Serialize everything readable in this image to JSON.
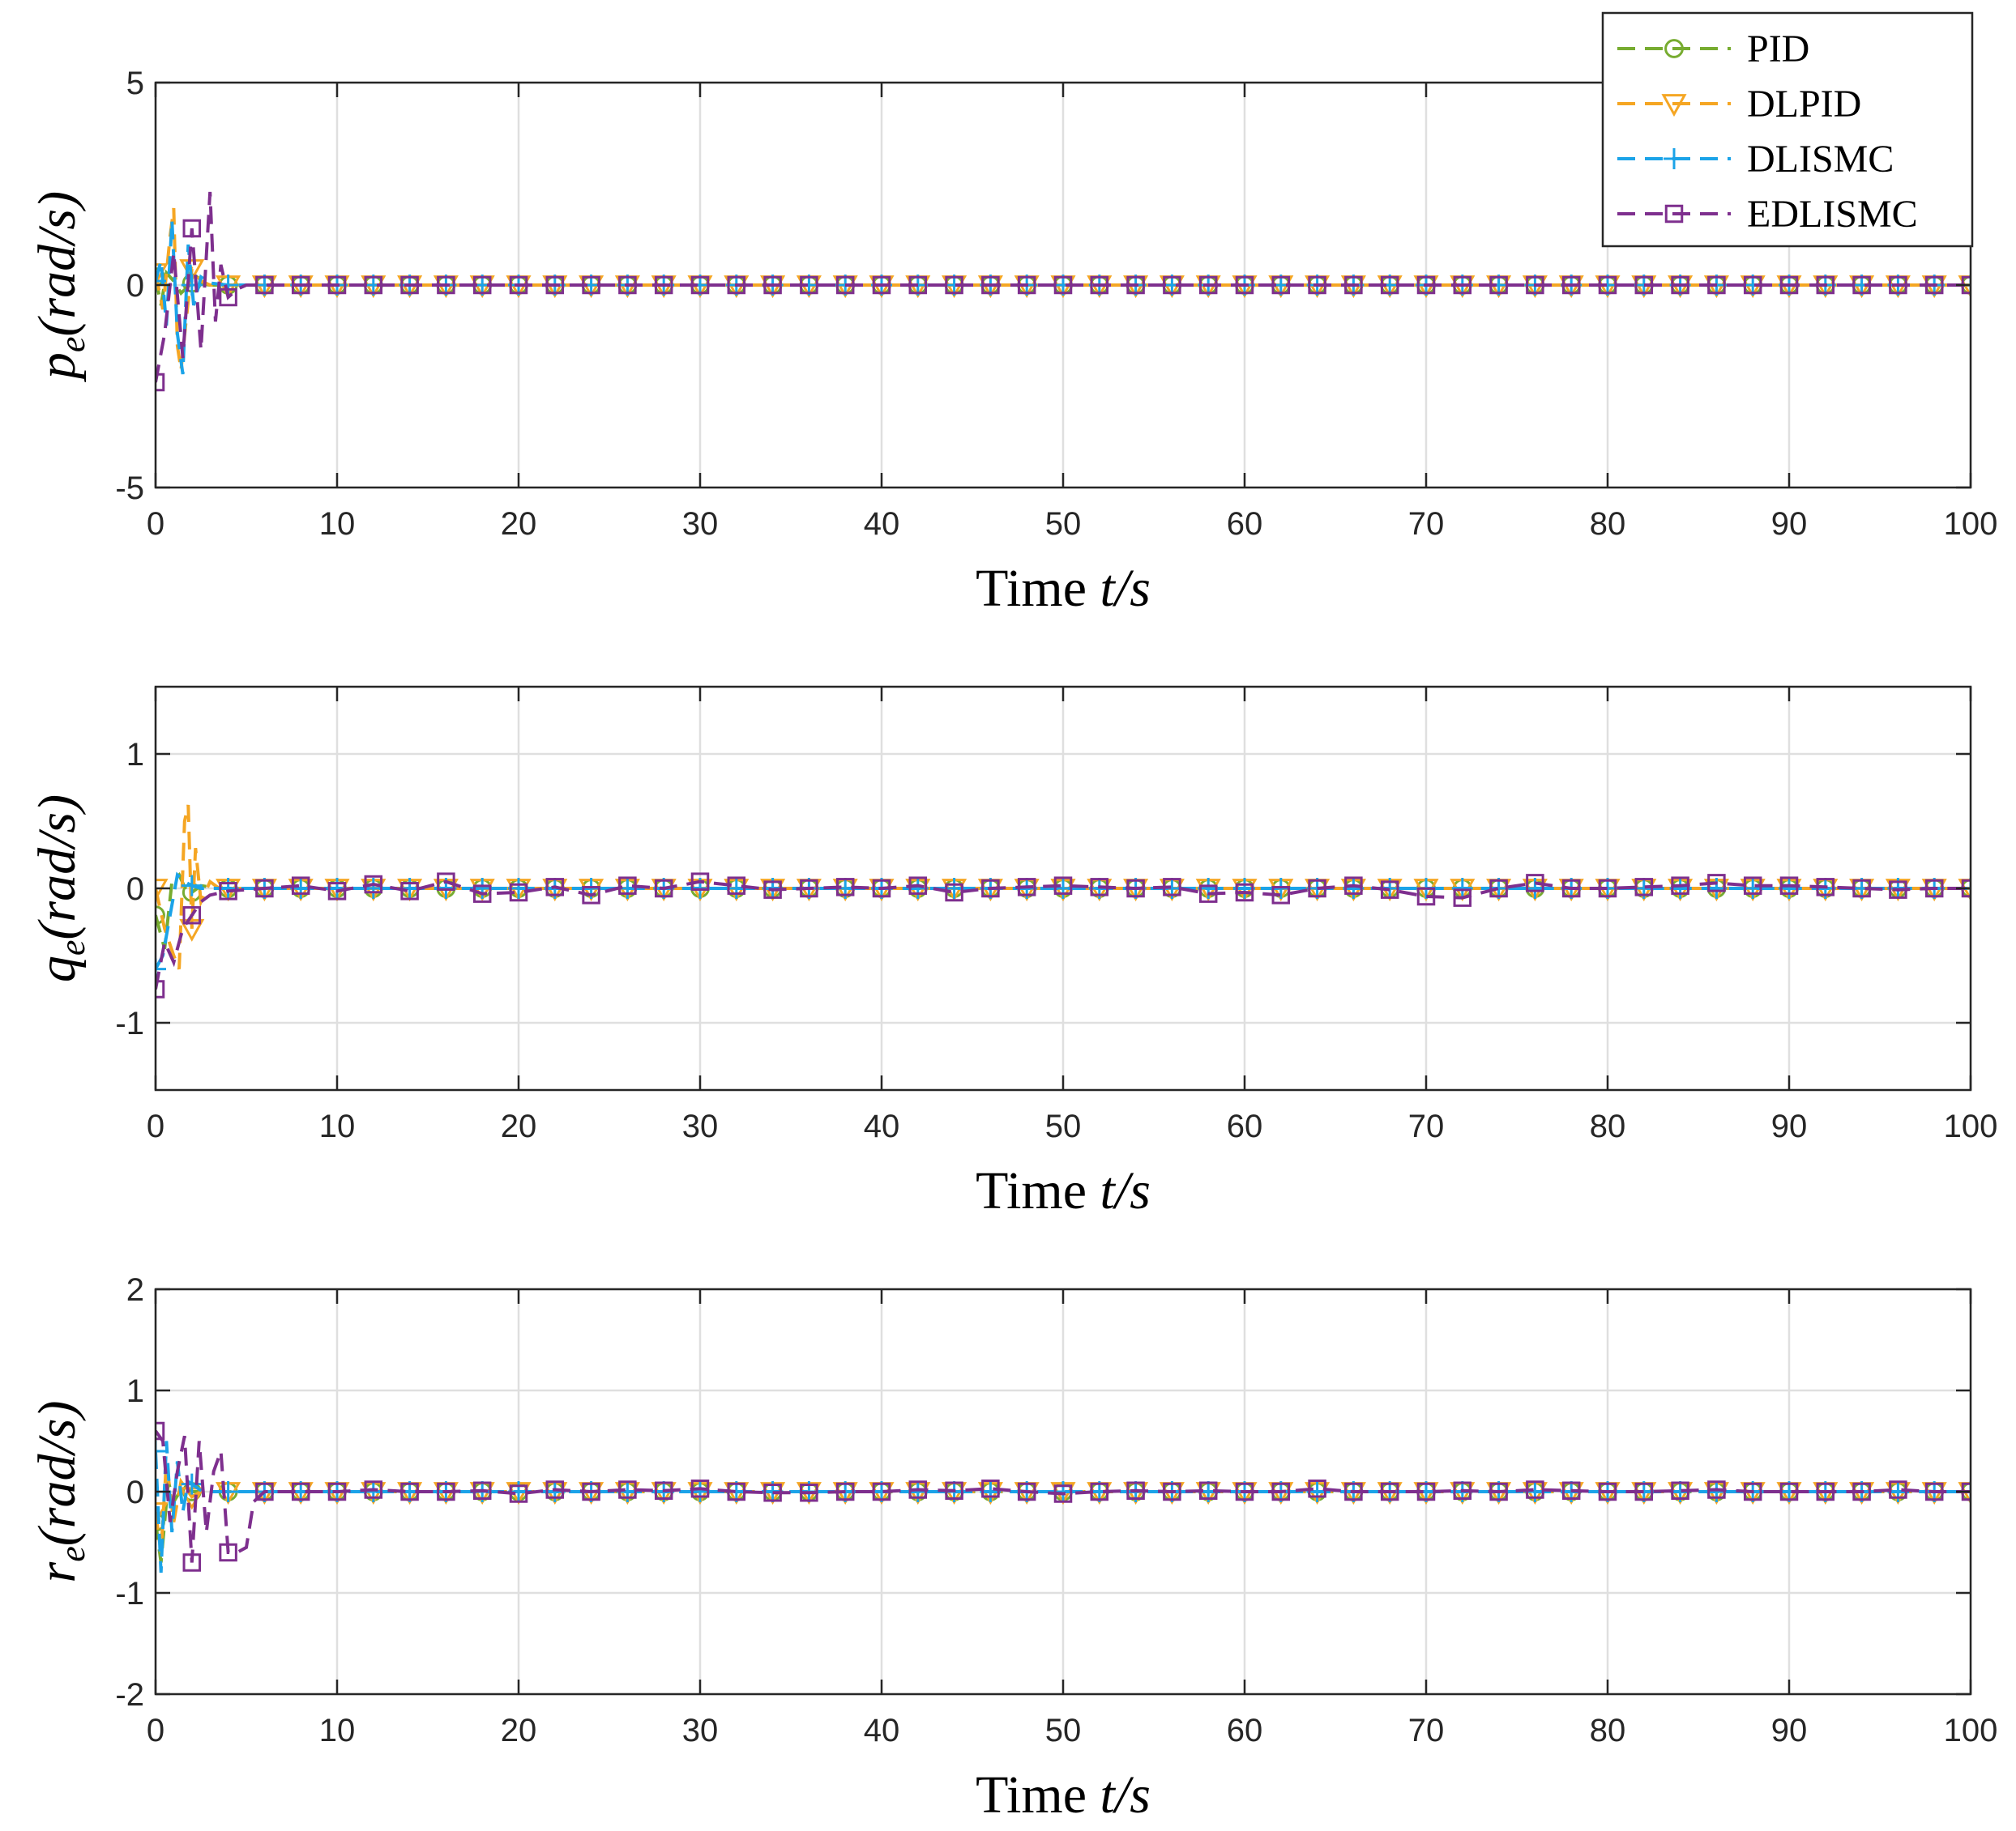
{
  "chart_data": [
    {
      "type": "line",
      "title": "",
      "xlabel": "Time t/s",
      "ylabel": "p_e(rad/s)",
      "xlim": [
        0,
        100
      ],
      "ylim": [
        -5,
        5
      ],
      "xticks": [
        0,
        10,
        20,
        30,
        40,
        50,
        60,
        70,
        80,
        90,
        100
      ],
      "yticks": [
        -5,
        0,
        5
      ],
      "grid": true,
      "series": [
        {
          "name": "PID",
          "x": [
            0,
            0.3,
            0.6,
            1.0,
            1.4,
            2.0,
            3.0,
            100
          ],
          "y": [
            0.2,
            -0.5,
            0.3,
            0.1,
            -0.2,
            0.05,
            0.0,
            0.0
          ]
        },
        {
          "name": "DLPID",
          "x": [
            0,
            0.4,
            0.8,
            1.0,
            1.2,
            1.4,
            1.7,
            2.0,
            2.5,
            3.0,
            100
          ],
          "y": [
            0.3,
            -0.6,
            1.2,
            1.9,
            -1.5,
            -2.1,
            -0.8,
            0.4,
            0.1,
            0.0,
            0.0
          ]
        },
        {
          "name": "DLISMC",
          "x": [
            0,
            0.3,
            0.6,
            0.9,
            1.2,
            1.5,
            1.8,
            2.1,
            2.5,
            3.0,
            4.0,
            100
          ],
          "y": [
            0.1,
            0.6,
            -1.0,
            1.6,
            -1.2,
            -2.2,
            1.0,
            -0.5,
            0.2,
            0.05,
            0.0,
            0.0
          ]
        },
        {
          "name": "EDLISMC",
          "x": [
            0,
            0.5,
            1.0,
            1.5,
            2.0,
            2.5,
            3.0,
            3.3,
            3.6,
            4.0,
            4.5,
            5.0,
            100
          ],
          "y": [
            -2.4,
            -1.2,
            0.8,
            -1.8,
            1.4,
            -1.6,
            2.3,
            -0.9,
            0.5,
            -0.3,
            -0.1,
            0.0,
            0.0
          ]
        }
      ]
    },
    {
      "type": "line",
      "title": "",
      "xlabel": "Time t/s",
      "ylabel": "q_e(rad/s)",
      "xlim": [
        0,
        100
      ],
      "ylim": [
        -1.5,
        1.5
      ],
      "xticks": [
        0,
        10,
        20,
        30,
        40,
        50,
        60,
        70,
        80,
        90,
        100
      ],
      "yticks": [
        -1,
        0,
        1
      ],
      "grid": true,
      "series": [
        {
          "name": "PID",
          "x": [
            0,
            0.5,
            0.9,
            1.3,
            1.8,
            2.5,
            3.5,
            100
          ],
          "y": [
            -0.2,
            -0.45,
            0.05,
            0.1,
            -0.05,
            0.02,
            0.0,
            0.0
          ]
        },
        {
          "name": "DLPID",
          "x": [
            0,
            0.5,
            1.0,
            1.3,
            1.6,
            1.8,
            2.0,
            2.2,
            2.5,
            3.0,
            3.5,
            100
          ],
          "y": [
            0.0,
            -0.3,
            -0.5,
            -0.6,
            0.5,
            0.62,
            -0.3,
            0.3,
            -0.1,
            0.05,
            0.0,
            0.0
          ]
        },
        {
          "name": "DLISMC",
          "x": [
            0,
            0.4,
            0.8,
            1.2,
            1.6,
            2.0,
            2.5,
            3.0,
            100
          ],
          "y": [
            -0.6,
            -0.5,
            -0.2,
            0.1,
            0.05,
            0.02,
            0.0,
            0.0,
            0.0
          ]
        },
        {
          "name": "EDLISMC",
          "x": [
            0,
            0.5,
            1.0,
            1.5,
            2.0,
            2.5,
            3.0,
            4.0,
            6,
            8,
            10,
            12,
            14,
            16,
            18,
            20,
            22,
            24,
            26,
            28,
            30,
            32,
            34,
            36,
            38,
            40,
            42,
            44,
            46,
            48,
            50,
            52,
            54,
            56,
            58,
            60,
            62,
            64,
            66,
            68,
            70,
            72,
            74,
            76,
            78,
            80,
            82,
            84,
            86,
            88,
            90,
            92,
            94,
            96,
            98,
            100
          ],
          "y": [
            -0.75,
            -0.4,
            -0.55,
            -0.3,
            -0.2,
            -0.1,
            -0.05,
            -0.02,
            0.0,
            0.02,
            -0.02,
            0.03,
            -0.02,
            0.05,
            -0.04,
            -0.03,
            0.01,
            -0.05,
            0.02,
            0.0,
            0.05,
            0.02,
            -0.01,
            0.0,
            0.01,
            0.0,
            0.02,
            -0.03,
            0.0,
            0.01,
            0.02,
            0.01,
            0.0,
            0.01,
            -0.04,
            -0.03,
            -0.05,
            0.0,
            0.02,
            -0.01,
            -0.06,
            -0.07,
            0.0,
            0.04,
            0.0,
            0.0,
            0.01,
            0.02,
            0.04,
            0.02,
            0.02,
            0.01,
            0.0,
            -0.01,
            0.0,
            0.0
          ]
        }
      ]
    },
    {
      "type": "line",
      "title": "",
      "xlabel": "Time t/s",
      "ylabel": "r_e(rad/s)",
      "xlim": [
        0,
        100
      ],
      "ylim": [
        -2,
        2
      ],
      "xticks": [
        0,
        10,
        20,
        30,
        40,
        50,
        60,
        70,
        80,
        90,
        100
      ],
      "yticks": [
        -2,
        -1,
        0,
        1,
        2
      ],
      "grid": true,
      "series": [
        {
          "name": "PID",
          "x": [
            0,
            0.3,
            0.7,
            1.0,
            1.5,
            2.0,
            3.0,
            100
          ],
          "y": [
            -0.3,
            -0.7,
            0.1,
            -0.1,
            0.05,
            0.0,
            0.0,
            0.0
          ]
        },
        {
          "name": "DLPID",
          "x": [
            0,
            0.3,
            0.6,
            1.0,
            1.4,
            2.0,
            2.5,
            3.0,
            100
          ],
          "y": [
            -0.2,
            -0.6,
            0.3,
            -0.3,
            0.1,
            -0.05,
            0.0,
            0.0,
            0.0
          ]
        },
        {
          "name": "DLISMC",
          "x": [
            0,
            0.3,
            0.6,
            0.9,
            1.2,
            1.5,
            1.8,
            2.2,
            2.6,
            3.0,
            100
          ],
          "y": [
            0.4,
            -0.8,
            0.5,
            -0.4,
            0.3,
            -0.2,
            0.1,
            0.05,
            0.0,
            0.0,
            0.0
          ]
        },
        {
          "name": "EDLISMC",
          "x": [
            0,
            0.4,
            0.8,
            1.2,
            1.6,
            2.0,
            2.4,
            2.8,
            3.2,
            3.6,
            4.0,
            4.5,
            5.0,
            5.4,
            6,
            8,
            10,
            12,
            14,
            16,
            18,
            20,
            22,
            24,
            26,
            28,
            30,
            32,
            34,
            36,
            38,
            40,
            42,
            44,
            46,
            48,
            50,
            52,
            54,
            56,
            58,
            60,
            62,
            64,
            66,
            68,
            70,
            72,
            74,
            76,
            78,
            80,
            82,
            84,
            86,
            88,
            90,
            92,
            94,
            96,
            98,
            100
          ],
          "y": [
            0.6,
            0.5,
            -0.3,
            0.2,
            0.55,
            -0.7,
            0.5,
            -0.4,
            0.2,
            0.4,
            -0.6,
            -0.6,
            -0.55,
            -0.1,
            0.0,
            0.0,
            0.0,
            0.02,
            0.0,
            0.0,
            0.01,
            -0.02,
            0.02,
            0.0,
            0.02,
            0.01,
            0.03,
            0.0,
            -0.01,
            -0.01,
            0.0,
            0.0,
            0.02,
            0.01,
            0.03,
            0.0,
            -0.02,
            0.0,
            0.01,
            0.0,
            0.01,
            0.0,
            0.0,
            0.03,
            0.0,
            0.0,
            0.0,
            0.01,
            0.0,
            0.02,
            0.01,
            0.0,
            0.0,
            0.01,
            0.02,
            0.0,
            0.0,
            0.0,
            0.0,
            0.02,
            0.0,
            0.0
          ]
        }
      ]
    }
  ],
  "legend": {
    "position": "top-right",
    "entries": [
      "PID",
      "DLPID",
      "DLISMC",
      "EDLISMC"
    ]
  },
  "colors": {
    "PID": "#77ac30",
    "DLPID": "#f5a623",
    "DLISMC": "#1ba3e8",
    "EDLISMC": "#7e2f8e",
    "grid": "#dfdfdf",
    "axis": "#262626"
  },
  "markers": {
    "PID": "circle-icon",
    "DLPID": "triangle-down-icon",
    "DLISMC": "plus-icon",
    "EDLISMC": "square-icon"
  }
}
